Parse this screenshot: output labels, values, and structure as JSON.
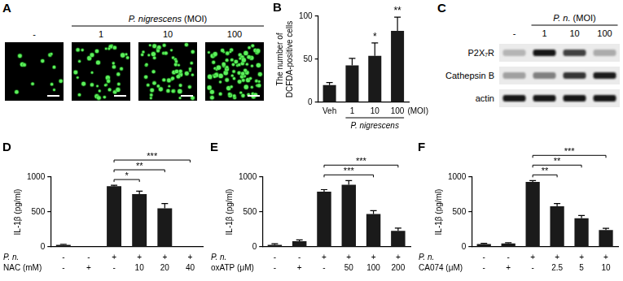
{
  "panels": {
    "A": {
      "title": "A",
      "group_label": "P. nigrescens",
      "unit": "(MOI)",
      "group_from": 1,
      "group_to": 3,
      "lanes": [
        "-",
        "1",
        "10",
        "100"
      ],
      "spot_counts": [
        12,
        40,
        55,
        90
      ]
    },
    "C": {
      "title": "C",
      "group_label": "P. n.",
      "unit": "(MOI)",
      "group_from": 1,
      "group_to": 3,
      "lanes": [
        "-",
        "1",
        "10",
        "100"
      ],
      "rows": [
        {
          "label": "P2X₇R",
          "band_intensity": [
            0.25,
            1.0,
            0.8,
            0.3
          ]
        },
        {
          "label": "Cathepsin B",
          "band_intensity": [
            0.35,
            0.5,
            0.85,
            0.95
          ]
        },
        {
          "label": "actin",
          "band_intensity": [
            1.0,
            1.0,
            1.0,
            1.0
          ]
        }
      ]
    }
  },
  "chart_data": [
    {
      "type": "bar",
      "title": "B",
      "y_label": [
        "The number of",
        "DCFDA-positive cells"
      ],
      "categories": [
        "Veh",
        "1",
        "10",
        "100"
      ],
      "group_label": "P. nigrescens",
      "group_from": 1,
      "group_to": 3,
      "unit": "(MOI)",
      "values": [
        20,
        43,
        54,
        83
      ],
      "errors": [
        3,
        8,
        15,
        16
      ],
      "color": "#1a1a1a",
      "ylim": [
        0,
        100
      ],
      "yticks": [
        0,
        50,
        100
      ],
      "grid": false,
      "significance": [
        {
          "index": 2,
          "text": "*"
        },
        {
          "index": 3,
          "text": "**"
        }
      ]
    },
    {
      "type": "bar",
      "title": "D",
      "y_label": "IL-1β (pg/ml)",
      "row_labels": [
        "P. n.",
        "NAC (mM)"
      ],
      "categories": [
        [
          "-",
          "-"
        ],
        [
          "-",
          "+"
        ],
        [
          "+",
          "-"
        ],
        [
          "+",
          "10"
        ],
        [
          "+",
          "20"
        ],
        [
          "+",
          "40"
        ]
      ],
      "values": [
        30,
        0,
        868,
        757,
        551,
        0
      ],
      "errors": [
        8,
        0,
        15,
        40,
        70,
        0
      ],
      "color": "#1a1a1a",
      "ylim": [
        0,
        1000
      ],
      "yticks": [
        0,
        500,
        1000
      ],
      "grid": false,
      "brackets": [
        {
          "from": 2,
          "to": 3,
          "text": "*"
        },
        {
          "from": 2,
          "to": 4,
          "text": "**"
        },
        {
          "from": 2,
          "to": 5,
          "text": "***"
        }
      ]
    },
    {
      "type": "bar",
      "title": "E",
      "y_label": "IL-1β (pg/ml)",
      "row_labels": [
        "P. n.",
        "oxATP (μM)"
      ],
      "categories": [
        [
          "-",
          "-"
        ],
        [
          "-",
          "+"
        ],
        [
          "+",
          "-"
        ],
        [
          "+",
          "50"
        ],
        [
          "+",
          "100"
        ],
        [
          "+",
          "200"
        ]
      ],
      "values": [
        30,
        80,
        790,
        890,
        470,
        230
      ],
      "errors": [
        15,
        20,
        30,
        60,
        50,
        40
      ],
      "color": "#1a1a1a",
      "ylim": [
        0,
        1000
      ],
      "yticks": [
        0,
        500,
        1000
      ],
      "grid": false,
      "brackets": [
        {
          "from": 2,
          "to": 4,
          "text": "***"
        },
        {
          "from": 2,
          "to": 5,
          "text": "***"
        }
      ]
    },
    {
      "type": "bar",
      "title": "F",
      "y_label": "IL-1β (pg/ml)",
      "row_labels": [
        "P. n.",
        "CA074 (μM)"
      ],
      "categories": [
        [
          "-",
          "-"
        ],
        [
          "-",
          "+"
        ],
        [
          "+",
          "-"
        ],
        [
          "+",
          "2.5"
        ],
        [
          "+",
          "5"
        ],
        [
          "+",
          "10"
        ]
      ],
      "values": [
        40,
        50,
        930,
        580,
        410,
        240
      ],
      "errors": [
        10,
        10,
        20,
        40,
        40,
        25
      ],
      "color": "#1a1a1a",
      "ylim": [
        0,
        1000
      ],
      "yticks": [
        0,
        500,
        1000
      ],
      "grid": false,
      "brackets": [
        {
          "from": 2,
          "to": 3,
          "text": "**"
        },
        {
          "from": 2,
          "to": 4,
          "text": "**"
        },
        {
          "from": 2,
          "to": 5,
          "text": "***"
        }
      ]
    }
  ]
}
